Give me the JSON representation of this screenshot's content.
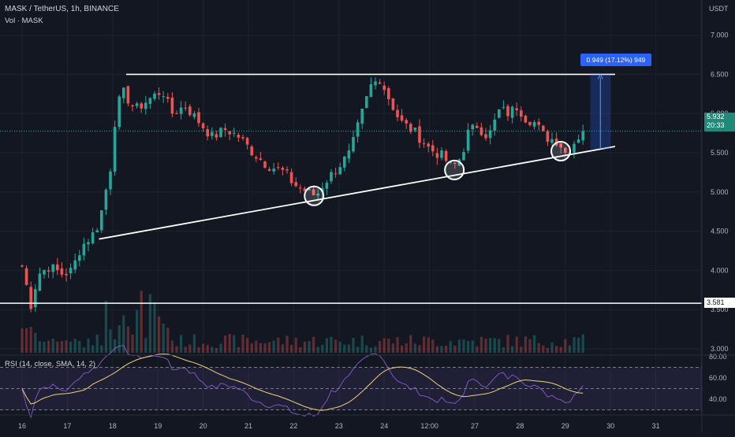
{
  "header": {
    "symbol_line": "MASK / TetherUS, 1h, BINANCE",
    "volume_label": "Vol · MASK"
  },
  "currency": "USDT",
  "rsi": {
    "label": "RSI (14, close, SMA, 14, 2)",
    "ticks": [
      "80.00",
      "60.00",
      "40.00"
    ],
    "levels": [
      70,
      50,
      30
    ]
  },
  "measure_label": "0.949 (17.12%) 949",
  "current_price": {
    "value": "5.932",
    "countdown": "20:33"
  },
  "support_level": {
    "value": "3.581"
  },
  "colors": {
    "background": "#131722",
    "up": "#26a69a",
    "down": "#ef5350",
    "rsi_line": "#7e57c2",
    "rsi_ma": "#f0d27a",
    "measure_fill": "#2962ff"
  },
  "chart_data": {
    "type": "candlestick",
    "title": "MASK / TetherUS, 1h, BINANCE",
    "ylim": [
      2.9,
      7.5
    ],
    "y_ticks": [
      "7.000",
      "6.500",
      "6.000",
      "5.500",
      "5.000",
      "4.500",
      "4.000",
      "3.500",
      "3.000"
    ],
    "x_tick_labels": [
      "16",
      "17",
      "18",
      "19",
      "20",
      "21",
      "22",
      "23",
      "24",
      "12:00",
      "27",
      "28",
      "29",
      "30",
      "31"
    ],
    "x_range": [
      "16",
      "31"
    ],
    "price_path": [
      [
        0.0,
        4.05
      ],
      [
        0.2,
        3.55
      ],
      [
        0.35,
        3.95
      ],
      [
        0.6,
        4.05
      ],
      [
        0.9,
        3.95
      ],
      [
        1.1,
        4.0
      ],
      [
        1.3,
        4.3
      ],
      [
        1.55,
        4.45
      ],
      [
        1.7,
        4.6
      ],
      [
        1.95,
        5.3
      ],
      [
        2.05,
        5.9
      ],
      [
        2.2,
        6.3
      ],
      [
        2.5,
        6.05
      ],
      [
        2.85,
        6.2
      ],
      [
        3.1,
        6.3
      ],
      [
        3.3,
        6.0
      ],
      [
        3.6,
        6.1
      ],
      [
        3.9,
        5.9
      ],
      [
        4.2,
        5.7
      ],
      [
        4.5,
        5.8
      ],
      [
        4.8,
        5.7
      ],
      [
        5.1,
        5.5
      ],
      [
        5.4,
        5.35
      ],
      [
        5.8,
        5.25
      ],
      [
        6.0,
        5.1
      ],
      [
        6.3,
        5.0
      ],
      [
        6.5,
        4.95
      ],
      [
        6.65,
        5.1
      ],
      [
        6.95,
        5.3
      ],
      [
        7.25,
        5.5
      ],
      [
        7.45,
        5.9
      ],
      [
        7.7,
        6.35
      ],
      [
        7.9,
        6.45
      ],
      [
        8.1,
        6.2
      ],
      [
        8.35,
        5.9
      ],
      [
        8.7,
        5.75
      ],
      [
        9.0,
        5.55
      ],
      [
        9.3,
        5.45
      ],
      [
        9.5,
        5.3
      ],
      [
        9.7,
        5.45
      ],
      [
        9.85,
        5.75
      ],
      [
        10.05,
        5.85
      ],
      [
        10.3,
        5.7
      ],
      [
        10.55,
        6.05
      ],
      [
        10.75,
        6.0
      ],
      [
        10.95,
        6.1
      ],
      [
        11.1,
        5.95
      ],
      [
        11.3,
        5.9
      ],
      [
        11.55,
        5.7
      ],
      [
        11.85,
        5.65
      ],
      [
        12.0,
        5.5
      ],
      [
        12.15,
        5.6
      ],
      [
        12.35,
        5.75
      ],
      [
        12.48,
        5.93
      ]
    ],
    "annotations": {
      "resistance": 6.5,
      "horizontal_support": 3.581,
      "trendline": [
        [
          1.7,
          4.4
        ],
        [
          13.1,
          5.58
        ]
      ],
      "touch_points": [
        [
          6.45,
          4.95
        ],
        [
          9.55,
          5.28
        ],
        [
          11.9,
          5.52
        ]
      ],
      "measured_move": {
        "from": 5.55,
        "to": 6.5,
        "label": "0.949 (17.12%) 949"
      }
    }
  }
}
